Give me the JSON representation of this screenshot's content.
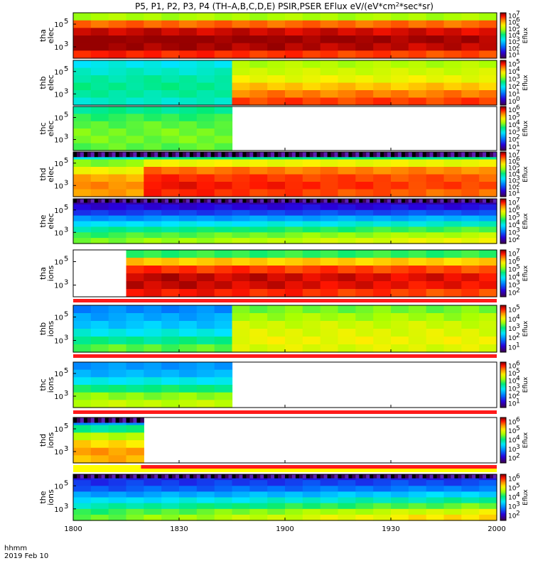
{
  "title": "P5, P1, P2, P3, P4 (TH–A,B,C,D,E) PSIR,PSER EFlux eV/(eV*cm",
  "title_sup": "2",
  "title_end": "*sec*sr)",
  "footer": {
    "xunit": "hhmm",
    "date": "2019 Feb 10"
  },
  "colorbar_label": "Eflux",
  "colors": {
    "red": "#ff1a1a",
    "yellow": "#ffff00",
    "black": "#000000"
  },
  "chart_data": {
    "type": "heatmap",
    "x_ticks": [
      "1800",
      "1830",
      "1900",
      "1930",
      "2000"
    ],
    "panels": [
      {
        "id": "tha-elec",
        "label": [
          "tha",
          "elec"
        ],
        "y_ticks": [
          "10",
          "10"
        ],
        "y_exps": [
          "5",
          "3"
        ],
        "cb_ticks": [
          "10",
          "10",
          "10",
          "10",
          "10",
          "10",
          "10"
        ],
        "cb_exps": [
          "7",
          "6",
          "5",
          "4",
          "3",
          "2",
          "1"
        ],
        "data_start": 0.0,
        "data_end": 1.0,
        "bins": 6,
        "profile": [
          5.0,
          6.6,
          7.3,
          7.6,
          7.5,
          7.0
        ],
        "time_trend": -0.3,
        "flags": []
      },
      {
        "id": "thb-elec",
        "label": [
          "thb",
          "elec"
        ],
        "y_ticks": [
          "10",
          "10"
        ],
        "y_exps": [
          "5",
          "3"
        ],
        "cb_ticks": [
          "10",
          "10",
          "10",
          "10",
          "10",
          "10"
        ],
        "cb_exps": [
          "5",
          "4",
          "3",
          "2",
          "1",
          "0"
        ],
        "data_start": 0.0,
        "data_end": 1.0,
        "bins": 6,
        "profile": [
          2.0,
          2.2,
          2.4,
          2.5,
          2.4,
          2.2
        ],
        "step_at": 0.36,
        "step_profile": [
          3.4,
          3.6,
          3.8,
          4.2,
          4.6,
          4.9
        ],
        "flags": []
      },
      {
        "id": "thc-elec",
        "label": [
          "thc",
          "elec"
        ],
        "y_ticks": [
          "10",
          "10"
        ],
        "y_exps": [
          "5",
          "3"
        ],
        "cb_ticks": [
          "10",
          "10",
          "10",
          "10",
          "10",
          "10"
        ],
        "cb_exps": [
          "6",
          "5",
          "4",
          "3",
          "2",
          "1"
        ],
        "data_start": 0.0,
        "data_end": 0.375,
        "bins": 6,
        "profile": [
          3.5,
          3.8,
          4.0,
          4.1,
          4.1,
          4.0
        ],
        "flags": []
      },
      {
        "id": "thd-elec",
        "label": [
          "thd",
          "elec"
        ],
        "y_ticks": [
          "10",
          "10"
        ],
        "y_exps": [
          "5",
          "3"
        ],
        "cb_ticks": [
          "10",
          "10",
          "10",
          "10",
          "10",
          "10",
          "10"
        ],
        "cb_exps": [
          "7",
          "6",
          "5",
          "4",
          "3",
          "2",
          "1"
        ],
        "data_start": 0.0,
        "data_end": 1.0,
        "bins": 6,
        "profile": [
          3.5,
          4.8,
          5.6,
          6.2,
          6.4,
          6.3
        ],
        "step_at": 0.16,
        "step_profile": [
          4.0,
          5.6,
          6.6,
          7.0,
          7.2,
          7.1
        ],
        "noise_top": true,
        "time_trend": -0.6,
        "flags": []
      },
      {
        "id": "the-elec",
        "label": [
          "the",
          "elec"
        ],
        "y_ticks": [
          "10",
          "10"
        ],
        "y_exps": [
          "5",
          "3"
        ],
        "cb_ticks": [
          "10",
          "10",
          "10",
          "10",
          "10",
          "10"
        ],
        "cb_exps": [
          "7",
          "6",
          "5",
          "4",
          "3",
          "2"
        ],
        "data_start": 0.0,
        "data_end": 1.0,
        "bins": 8,
        "profile": [
          2.0,
          2.2,
          2.6,
          3.2,
          3.8,
          4.4,
          4.8,
          5.1
        ],
        "noise_top": true,
        "time_trend": 0.8,
        "flags": []
      },
      {
        "id": "tha-ions",
        "label": [
          "tha",
          "ions"
        ],
        "y_ticks": [
          "10",
          "10"
        ],
        "y_exps": [
          "5",
          "3"
        ],
        "cb_ticks": [
          "10",
          "10",
          "10",
          "10",
          "10",
          "10"
        ],
        "cb_exps": [
          "7",
          "6",
          "5",
          "4",
          "3",
          "2"
        ],
        "data_start": 0.14,
        "data_end": 1.0,
        "bins": 6,
        "profile": [
          4.8,
          6.2,
          7.0,
          7.4,
          7.4,
          7.2
        ],
        "time_trend": -0.4,
        "flags": [
          {
            "color": "red",
            "start": 0.0,
            "end": 1.0
          }
        ]
      },
      {
        "id": "thb-ions",
        "label": [
          "thb",
          "ions"
        ],
        "y_ticks": [
          "10",
          "10"
        ],
        "y_exps": [
          "5",
          "3"
        ],
        "cb_ticks": [
          "10",
          "10",
          "10",
          "10",
          "10"
        ],
        "cb_exps": [
          "5",
          "4",
          "3",
          "2",
          "1"
        ],
        "data_start": 0.0,
        "data_end": 1.0,
        "bins": 6,
        "profile": [
          1.9,
          2.1,
          2.3,
          2.6,
          3.0,
          3.4
        ],
        "step_at": 0.36,
        "step_profile": [
          3.5,
          3.7,
          3.9,
          4.0,
          4.1,
          4.0
        ],
        "flags": [
          {
            "color": "red",
            "start": 0.0,
            "end": 1.0
          }
        ]
      },
      {
        "id": "thc-ions",
        "label": [
          "thc",
          "ions"
        ],
        "y_ticks": [
          "10",
          "10"
        ],
        "y_exps": [
          "5",
          "3"
        ],
        "cb_ticks": [
          "10",
          "10",
          "10",
          "10",
          "10",
          "10"
        ],
        "cb_exps": [
          "6",
          "5",
          "4",
          "3",
          "2",
          "1"
        ],
        "data_start": 0.0,
        "data_end": 0.37,
        "bins": 6,
        "profile": [
          2.3,
          2.5,
          3.0,
          3.6,
          4.2,
          4.5
        ],
        "flags": [
          {
            "color": "red",
            "start": 0.0,
            "end": 1.0
          }
        ]
      },
      {
        "id": "thd-ions",
        "label": [
          "thd",
          "ions"
        ],
        "y_ticks": [
          "10",
          "10"
        ],
        "y_exps": [
          "5",
          "3"
        ],
        "cb_ticks": [
          "10",
          "10",
          "10",
          "10",
          "10"
        ],
        "cb_exps": [
          "6",
          "5",
          "4",
          "3",
          "2"
        ],
        "data_start": 0.0,
        "data_end": 0.165,
        "bins": 6,
        "profile": [
          3.0,
          4.0,
          4.8,
          5.3,
          5.6,
          5.5
        ],
        "noise_top": true,
        "flags": [
          {
            "color": "yellow",
            "start": 0.0,
            "end": 0.16
          },
          {
            "color": "red",
            "start": 0.16,
            "end": 1.0
          }
        ]
      },
      {
        "id": "the-ions",
        "label": [
          "the",
          "ions"
        ],
        "y_ticks": [
          "10",
          "10"
        ],
        "y_exps": [
          "5",
          "3"
        ],
        "cb_ticks": [
          "10",
          "10",
          "10",
          "10",
          "10"
        ],
        "cb_exps": [
          "6",
          "5",
          "4",
          "3",
          "2"
        ],
        "data_start": 0.0,
        "data_end": 1.0,
        "bins": 8,
        "profile": [
          2.3,
          2.4,
          2.6,
          3.0,
          3.4,
          3.8,
          4.2,
          4.4
        ],
        "noise_top": true,
        "time_trend": 1.0,
        "flags": [
          {
            "color": "yellow",
            "start": 0.0,
            "end": 1.0
          }
        ]
      }
    ]
  }
}
